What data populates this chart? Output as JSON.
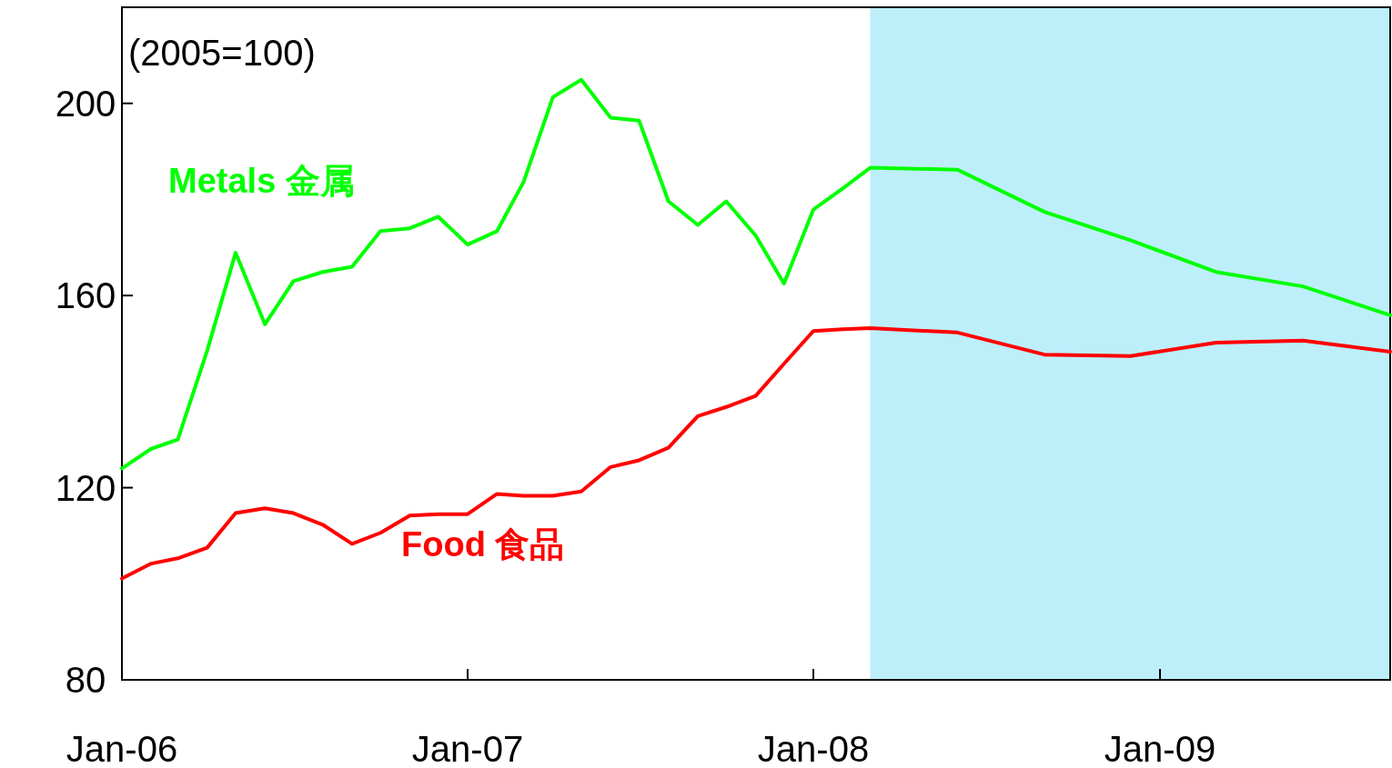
{
  "chart_data": {
    "type": "line",
    "title": "(2005=100)",
    "x": [
      "2006-01",
      "2006-02",
      "2006-03",
      "2006-04",
      "2006-05",
      "2006-06",
      "2006-07",
      "2006-08",
      "2006-09",
      "2006-10",
      "2006-11",
      "2006-12",
      "2007-01",
      "2007-02",
      "2007-03",
      "2007-04",
      "2007-05",
      "2007-06",
      "2007-07",
      "2007-08",
      "2007-09",
      "2007-10",
      "2007-11",
      "2007-12",
      "2008-01",
      "2008-02",
      "2008-03",
      "2008-06",
      "2008-09",
      "2008-12",
      "2009-03",
      "2009-06",
      "2009-09"
    ],
    "series": [
      {
        "name": "Metals 金属",
        "color": "#00ff00",
        "values": [
          124.0,
          128.1,
          130.0,
          148.5,
          168.9,
          154.0,
          163.0,
          164.9,
          166.0,
          173.4,
          174.0,
          176.4,
          170.6,
          173.4,
          183.6,
          201.3,
          204.9,
          197.0,
          196.4,
          179.6,
          174.7,
          179.6,
          172.5,
          162.5,
          177.9,
          182.3,
          186.6,
          186.2,
          177.4,
          171.5,
          164.9,
          161.9,
          155.9
        ]
      },
      {
        "name": "Food 食品",
        "color": "#ff0000",
        "values": [
          101.1,
          104.2,
          105.3,
          107.5,
          114.7,
          115.7,
          114.7,
          112.3,
          108.3,
          110.6,
          114.2,
          114.5,
          114.5,
          118.7,
          118.3,
          118.3,
          119.2,
          124.3,
          125.7,
          128.3,
          134.9,
          136.8,
          139.1,
          145.8,
          152.6,
          153.0,
          153.2,
          152.3,
          147.7,
          147.4,
          150.2,
          150.6,
          148.3
        ]
      }
    ],
    "xlim": [
      "2006-01",
      "2009-09"
    ],
    "xticks": [
      {
        "value": "2006-01",
        "label": "Jan-06"
      },
      {
        "value": "2007-01",
        "label": "Jan-07"
      },
      {
        "value": "2008-01",
        "label": "Jan-08"
      },
      {
        "value": "2009-01",
        "label": "Jan-09"
      }
    ],
    "ylim": [
      80,
      220
    ],
    "yticks": [
      80,
      120,
      160,
      200
    ],
    "bands": [
      {
        "axis": "x",
        "from": "2008-03",
        "to": "2009-09",
        "color": "#bdeffb"
      }
    ],
    "grid": false,
    "legend": false,
    "marker": "none",
    "line_style": "solid"
  }
}
